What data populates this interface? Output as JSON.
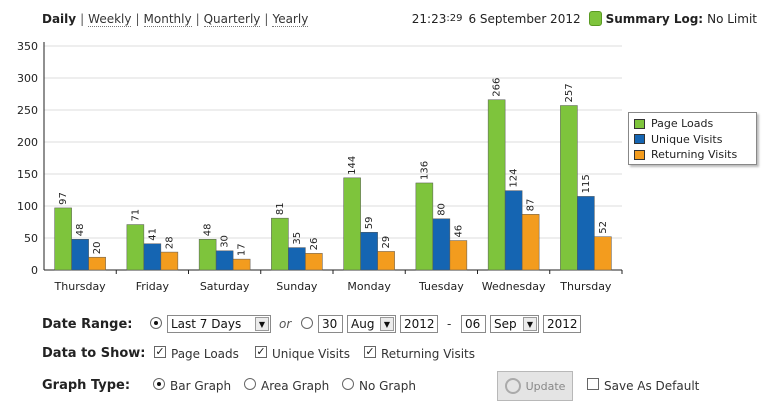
{
  "periods": [
    {
      "label": "Daily",
      "active": true
    },
    {
      "label": "Weekly",
      "active": false
    },
    {
      "label": "Monthly",
      "active": false
    },
    {
      "label": "Quarterly",
      "active": false
    },
    {
      "label": "Yearly",
      "active": false
    }
  ],
  "header": {
    "time_hm": "21:23",
    "time_sec": ":29",
    "date": "6 September 2012",
    "summary_label": "Summary Log:",
    "summary_value": "No Limit"
  },
  "colors": {
    "page_loads": "#7ec43c",
    "unique_visits": "#1565b2",
    "returning_visits": "#f39c1e"
  },
  "chart_data": {
    "type": "bar",
    "categories": [
      "Thursday",
      "Friday",
      "Saturday",
      "Sunday",
      "Monday",
      "Tuesday",
      "Wednesday",
      "Thursday"
    ],
    "series": [
      {
        "name": "Page Loads",
        "values": [
          97,
          71,
          48,
          81,
          144,
          136,
          266,
          257
        ]
      },
      {
        "name": "Unique Visits",
        "values": [
          48,
          41,
          30,
          35,
          59,
          80,
          124,
          115
        ]
      },
      {
        "name": "Returning Visits",
        "values": [
          20,
          28,
          17,
          26,
          29,
          46,
          87,
          52
        ]
      }
    ],
    "y_ticks": [
      "0",
      "50",
      "100",
      "150",
      "200",
      "250",
      "300",
      "350"
    ],
    "ylim": [
      0,
      350
    ],
    "grid": true,
    "legend": "right"
  },
  "legend": [
    "Page Loads",
    "Unique Visits",
    "Returning Visits"
  ],
  "controls": {
    "date_range_label": "Date Range:",
    "range_preset": "Last 7 Days",
    "or_label": "or",
    "from_day": "30",
    "from_month": "Aug",
    "from_year": "2012",
    "dash": "-",
    "to_day": "06",
    "to_month": "Sep",
    "to_year": "2012",
    "data_label": "Data to Show:",
    "show_options": [
      "Page Loads",
      "Unique Visits",
      "Returning Visits"
    ],
    "graph_type_label": "Graph Type:",
    "graph_options": [
      "Bar Graph",
      "Area Graph",
      "No Graph"
    ],
    "update_label": "Update",
    "default_label": "Save As Default"
  }
}
